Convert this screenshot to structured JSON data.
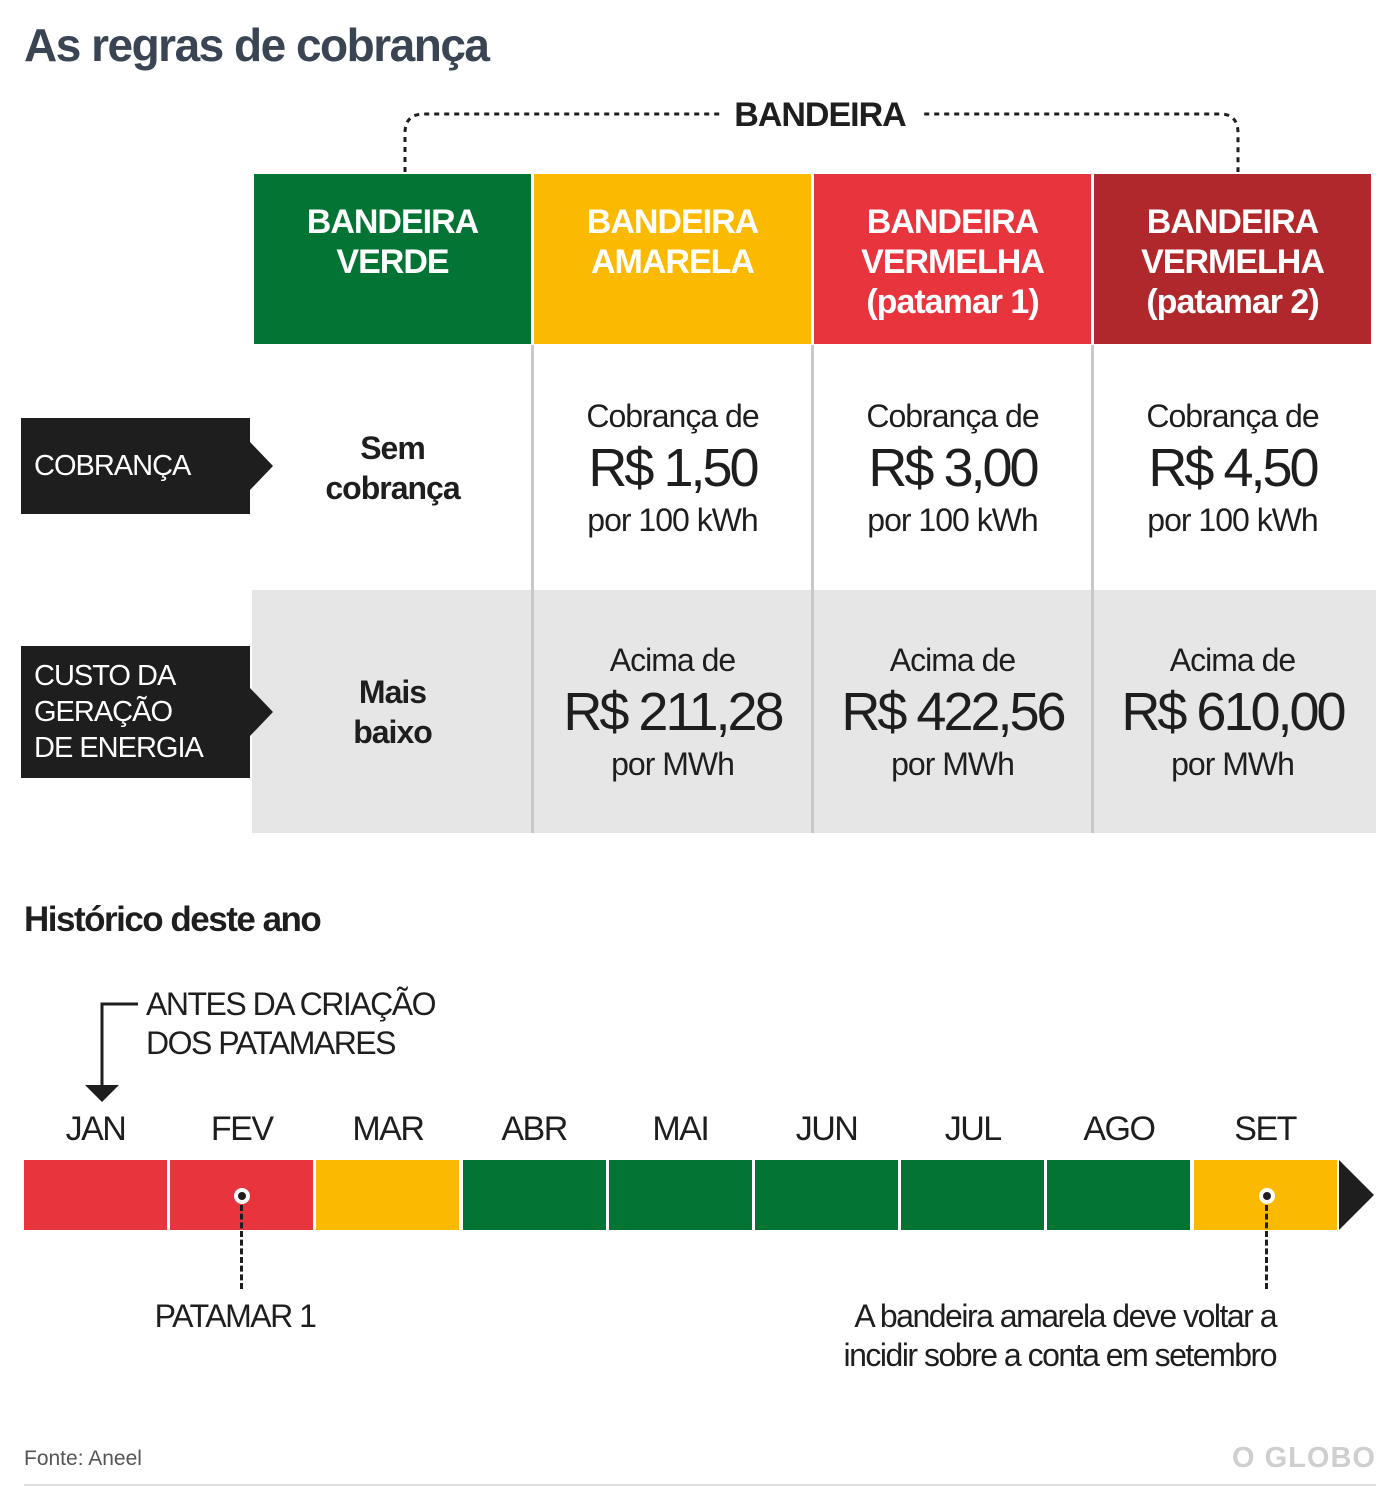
{
  "title": "As regras de cobrança",
  "bandeira_label": "BANDEIRA",
  "flags": [
    {
      "name_lines": [
        "BANDEIRA",
        "VERDE"
      ],
      "color": "#047435"
    },
    {
      "name_lines": [
        "BANDEIRA",
        "AMARELA"
      ],
      "color": "#fbb900"
    },
    {
      "name_lines": [
        "BANDEIRA",
        "VERMELHA",
        "(patamar 1)"
      ],
      "color": "#e8343c"
    },
    {
      "name_lines": [
        "BANDEIRA",
        "VERMELHA",
        "(patamar 2)"
      ],
      "color": "#b0282c"
    }
  ],
  "rows": [
    {
      "label_lines": [
        "COBRANÇA"
      ],
      "cells": [
        {
          "text": "Sem cobrança"
        },
        {
          "pre": "Cobrança de",
          "value": "R$ 1,50",
          "post": "por 100 kWh"
        },
        {
          "pre": "Cobrança de",
          "value": "R$ 3,00",
          "post": "por 100 kWh"
        },
        {
          "pre": "Cobrança de",
          "value": "R$ 4,50",
          "post": "por 100 kWh"
        }
      ]
    },
    {
      "label_lines": [
        "CUSTO DA",
        "GERAÇÃO",
        "DE ENERGIA"
      ],
      "cells": [
        {
          "text": "Mais baixo"
        },
        {
          "pre": "Acima de",
          "value": "R$ 211,28",
          "post": "por MWh"
        },
        {
          "pre": "Acima de",
          "value": "R$ 422,56",
          "post": "por MWh"
        },
        {
          "pre": "Acima de",
          "value": "R$ 610,00",
          "post": "por MWh"
        }
      ]
    }
  ],
  "history": {
    "title": "Histórico deste ano",
    "annotation_lines": [
      "ANTES DA CRIAÇÃO",
      "DOS PATAMARES"
    ],
    "months": [
      {
        "label": "JAN",
        "flag": "red"
      },
      {
        "label": "FEV",
        "flag": "red"
      },
      {
        "label": "MAR",
        "flag": "yellow"
      },
      {
        "label": "ABR",
        "flag": "green"
      },
      {
        "label": "MAI",
        "flag": "green"
      },
      {
        "label": "JUN",
        "flag": "green"
      },
      {
        "label": "JUL",
        "flag": "green"
      },
      {
        "label": "AGO",
        "flag": "green"
      },
      {
        "label": "SET",
        "flag": "yellow"
      }
    ],
    "flag_colors": {
      "red": "#e8343c",
      "yellow": "#fbb900",
      "green": "#047435"
    },
    "patamar_note": "PATAMAR 1",
    "set_note_lines": [
      "A bandeira amarela deve voltar a",
      "incidir sobre a conta em setembro"
    ]
  },
  "source": "Fonte: Aneel",
  "logo": "O GLOBO"
}
